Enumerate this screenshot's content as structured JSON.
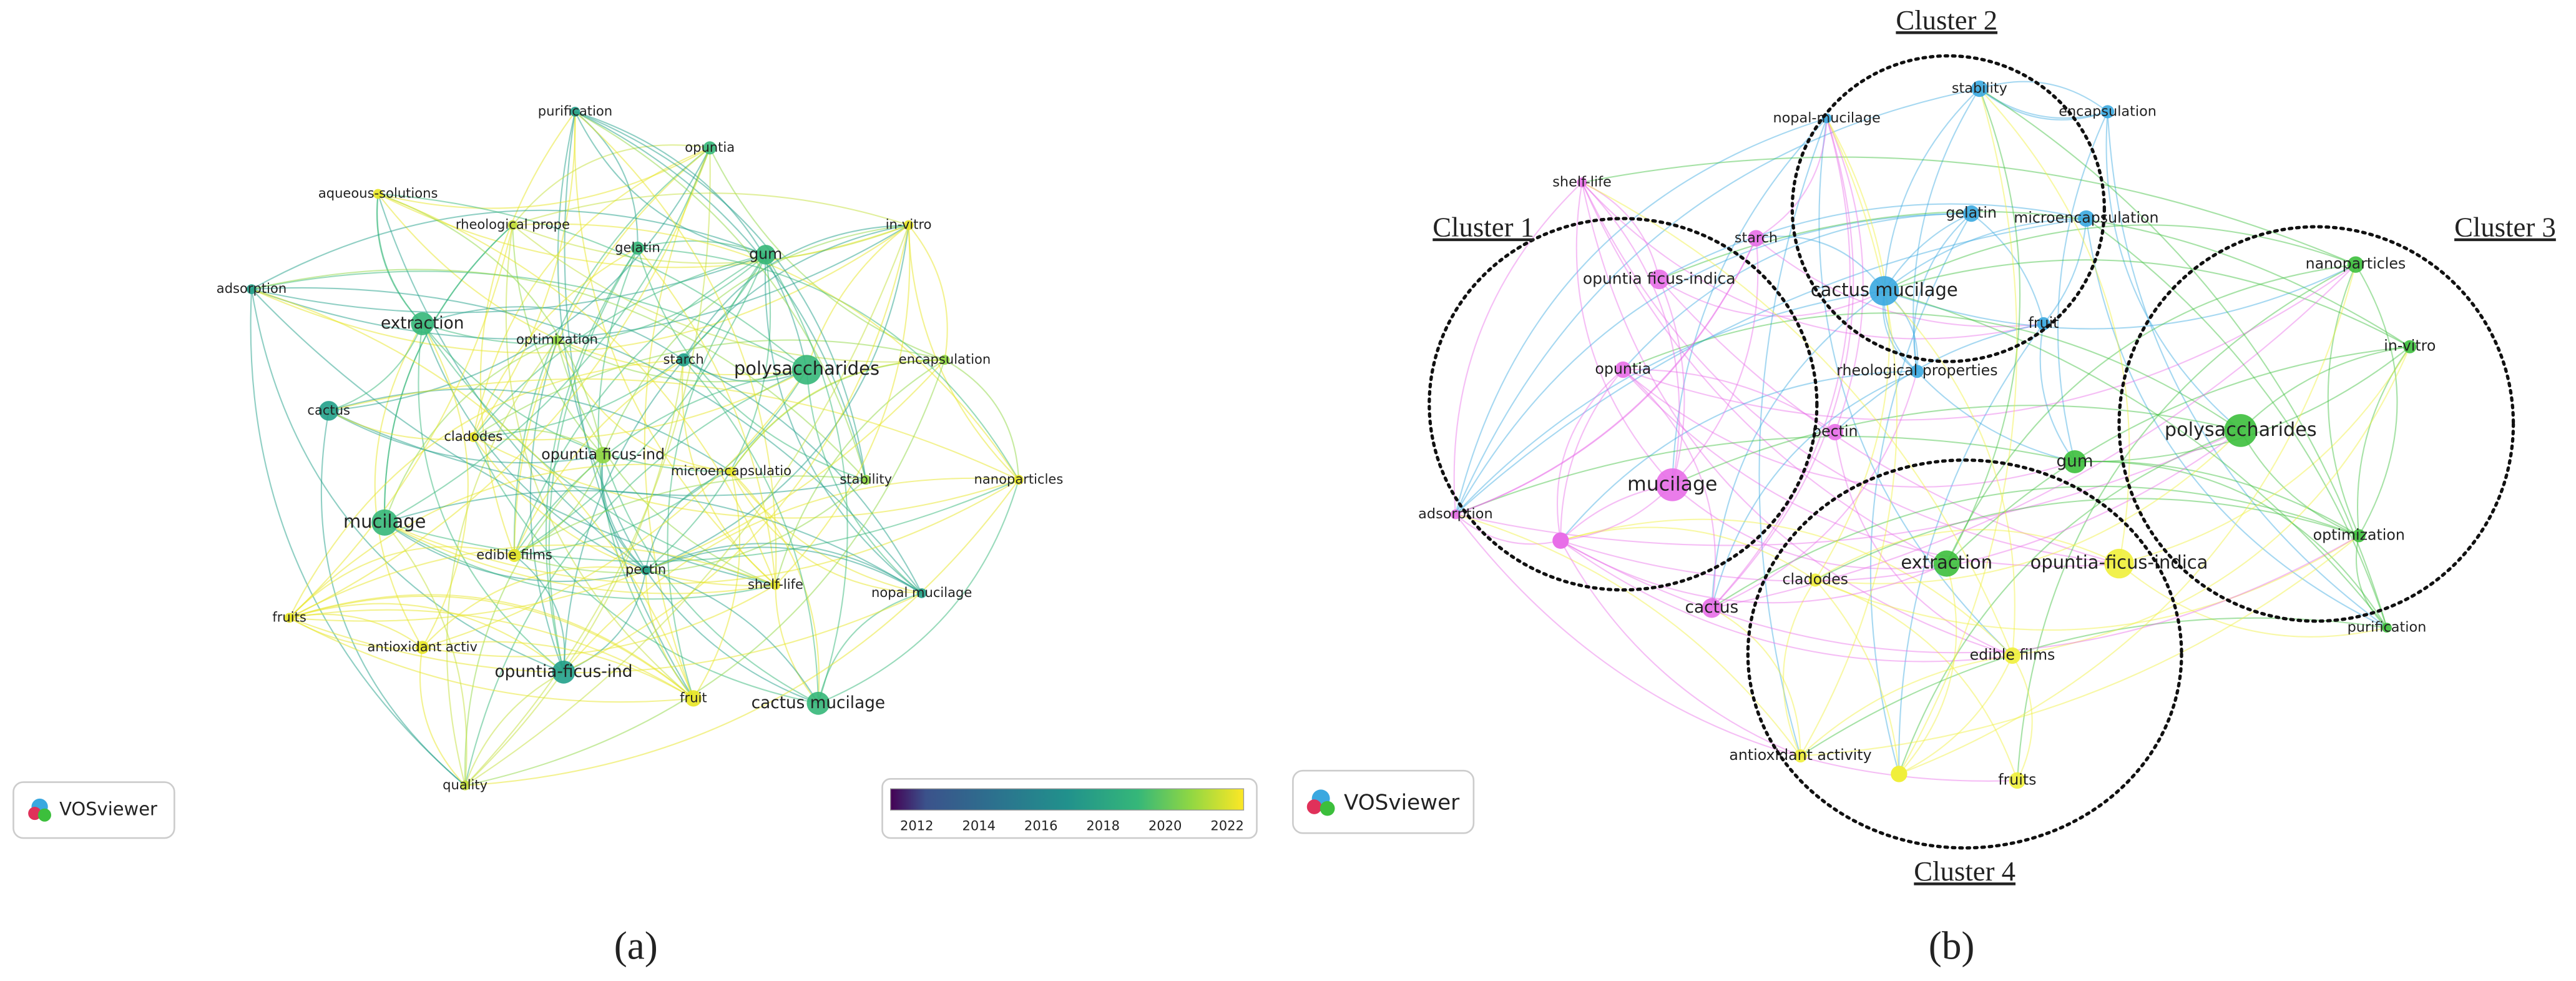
{
  "panel_a": {
    "label": "(a)",
    "logo": "VOSviewer",
    "nodes": [
      "purification",
      "opuntia",
      "aqueous-solutions",
      "rheological prope",
      "in-vitro",
      "adsorption",
      "gelatin",
      "gum",
      "extraction",
      "optimization",
      "encapsulation",
      "starch",
      "polysaccharides",
      "cactus",
      "cladodes",
      "opuntia ficus-ind",
      "microencapsulatio",
      "nanoparticles",
      "stability",
      "mucilage",
      "edible films",
      "pectin",
      "shelf-life",
      "nopal mucilage",
      "fruits",
      "antioxidant activ",
      "opuntia-ficus-ind",
      "fruit",
      "cactus mucilage",
      "quality"
    ],
    "colorbar_ticks": [
      2012,
      2014,
      2016,
      2018,
      2020,
      2022
    ]
  },
  "panel_b": {
    "label": "(b)",
    "logo": "VOSviewer",
    "clusters": [
      "Cluster 1",
      "Cluster 2",
      "Cluster 3",
      "Cluster 4"
    ],
    "nodes": [
      "stability",
      "nopal-mucilage",
      "encapsulation",
      "shelf-life",
      "starch",
      "gelatin",
      "microencapsulation",
      "opuntia ficus-indica",
      "cactus mucilage",
      "fruit",
      "nanoparticles",
      "in-vitro",
      "opuntia",
      "rheological properties",
      "pectin",
      "polysaccharides",
      "gum",
      "mucilage",
      "adsorption",
      "optimization",
      "extraction",
      "opuntia-ficus-indica",
      "cladodes",
      "cactus",
      "purification",
      "edible films",
      "antioxidant activity",
      "fruits"
    ]
  }
}
